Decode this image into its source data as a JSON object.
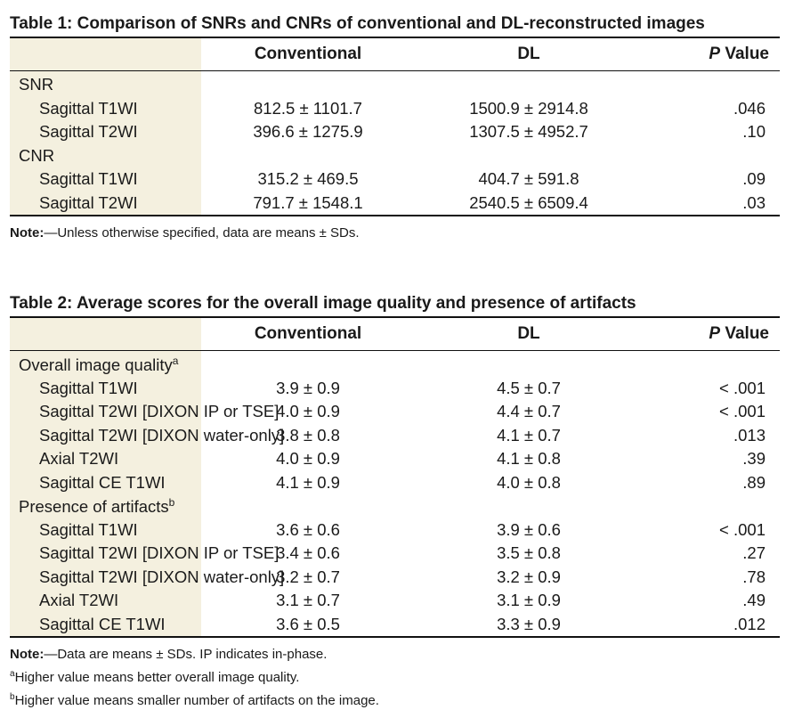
{
  "table1": {
    "caption": "Table 1: Comparison of SNRs and CNRs of conventional and DL-reconstructed images",
    "headers": [
      "Conventional",
      "DL"
    ],
    "p_label": "Value",
    "p_letter": "P",
    "groups": [
      {
        "label": "SNR",
        "sup": "",
        "rows": [
          {
            "label": "Sagittal T1WI",
            "conventional": "812.5 ± 1101.7",
            "dl": "1500.9 ± 2914.8",
            "p": ".046"
          },
          {
            "label": "Sagittal T2WI",
            "conventional": "396.6 ± 1275.9",
            "dl": "1307.5 ± 4952.7",
            "p": ".10"
          }
        ]
      },
      {
        "label": "CNR",
        "sup": "",
        "rows": [
          {
            "label": "Sagittal T1WI",
            "conventional": "315.2 ± 469.5",
            "dl": "404.7 ± 591.8",
            "p": ".09"
          },
          {
            "label": "Sagittal T2WI",
            "conventional": "791.7 ± 1548.1",
            "dl": "2540.5 ± 6509.4",
            "p": ".03"
          }
        ]
      }
    ],
    "note_label": "Note:",
    "note_text": "—Unless otherwise specified, data are means ± SDs.",
    "footnotes": []
  },
  "table2": {
    "caption": "Table 2: Average scores for the overall image quality and presence of artifacts",
    "headers": [
      "Conventional",
      "DL"
    ],
    "p_label": "Value",
    "p_letter": "P",
    "groups": [
      {
        "label": "Overall image quality",
        "sup": "a",
        "rows": [
          {
            "label": "Sagittal T1WI",
            "conventional": "3.9 ± 0.9",
            "dl": "4.5 ± 0.7",
            "p": "< .001"
          },
          {
            "label": "Sagittal T2WI [DIXON IP or TSE]",
            "conventional": "4.0 ± 0.9",
            "dl": "4.4 ± 0.7",
            "p": "< .001"
          },
          {
            "label": "Sagittal T2WI [DIXON water-only]",
            "conventional": "3.8 ± 0.8",
            "dl": "4.1 ± 0.7",
            "p": ".013"
          },
          {
            "label": "Axial T2WI",
            "conventional": "4.0 ± 0.9",
            "dl": "4.1 ± 0.8",
            "p": ".39"
          },
          {
            "label": "Sagittal CE T1WI",
            "conventional": "4.1 ± 0.9",
            "dl": "4.0 ± 0.8",
            "p": ".89"
          }
        ]
      },
      {
        "label": "Presence of artifacts",
        "sup": "b",
        "rows": [
          {
            "label": "Sagittal T1WI",
            "conventional": "3.6 ± 0.6",
            "dl": "3.9 ± 0.6",
            "p": "< .001"
          },
          {
            "label": "Sagittal T2WI [DIXON IP or TSE]",
            "conventional": "3.4 ± 0.6",
            "dl": "3.5 ± 0.8",
            "p": ".27"
          },
          {
            "label": "Sagittal T2WI [DIXON water-only]",
            "conventional": "3.2 ± 0.7",
            "dl": "3.2 ± 0.9",
            "p": ".78"
          },
          {
            "label": "Axial T2WI",
            "conventional": "3.1 ± 0.7",
            "dl": "3.1 ± 0.9",
            "p": ".49"
          },
          {
            "label": "Sagittal CE T1WI",
            "conventional": "3.6 ± 0.5",
            "dl": "3.3 ± 0.9",
            "p": ".012"
          }
        ]
      }
    ],
    "note_label": "Note:",
    "note_text": "—Data are means ± SDs. IP indicates in-phase.",
    "footnotes": [
      {
        "mark": "a",
        "text": "Higher value means better overall image quality."
      },
      {
        "mark": "b",
        "text": "Higher value means smaller number of artifacts on the image."
      }
    ]
  }
}
